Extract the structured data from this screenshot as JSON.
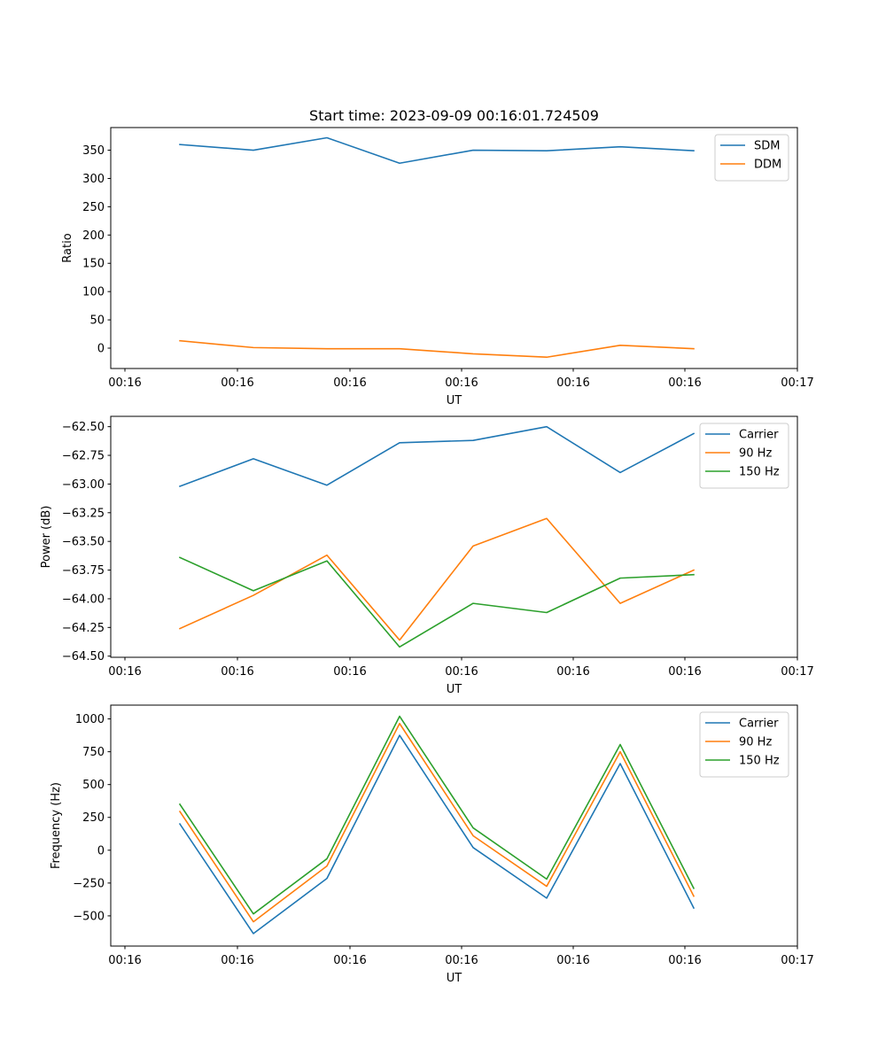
{
  "figure_title": "Start time: 2023-09-09 00:16:01.724509",
  "chart_data": [
    {
      "type": "line",
      "title": "Start time: 2023-09-09 00:16:01.724509",
      "xlabel": "UT",
      "ylabel": "Ratio",
      "x_ticks": [
        "00:16",
        "00:16",
        "00:16",
        "00:16",
        "00:16",
        "00:16",
        "00:17"
      ],
      "yticks": [
        0,
        50,
        100,
        150,
        200,
        250,
        300,
        350
      ],
      "ylim": [
        -36,
        390
      ],
      "legend_position": "top-right",
      "grid": false,
      "series": [
        {
          "name": "SDM",
          "color": "#1f77b4",
          "values": [
            360,
            350,
            372,
            327,
            350,
            349,
            356,
            349
          ]
        },
        {
          "name": "DDM",
          "color": "#ff7f0e",
          "values": [
            13,
            1,
            -1,
            -1,
            -10,
            -16,
            5,
            -1
          ]
        }
      ]
    },
    {
      "type": "line",
      "title": "",
      "xlabel": "UT",
      "ylabel": "Power (dB)",
      "x_ticks": [
        "00:16",
        "00:16",
        "00:16",
        "00:16",
        "00:16",
        "00:16",
        "00:17"
      ],
      "yticks": [
        -64.5,
        -64.25,
        -64.0,
        -63.75,
        -63.5,
        -63.25,
        -63.0,
        -62.75,
        -62.5
      ],
      "ytick_labels": [
        "−64.50",
        "−64.25",
        "−64.00",
        "−63.75",
        "−63.50",
        "−63.25",
        "−63.00",
        "−62.75",
        "−62.50"
      ],
      "ylim": [
        -64.51,
        -62.41
      ],
      "legend_position": "top-right",
      "grid": false,
      "series": [
        {
          "name": "Carrier",
          "color": "#1f77b4",
          "values": [
            -63.02,
            -62.78,
            -63.01,
            -62.64,
            -62.62,
            -62.5,
            -62.9,
            -62.56
          ]
        },
        {
          "name": "90 Hz",
          "color": "#ff7f0e",
          "values": [
            -64.26,
            -63.97,
            -63.62,
            -64.36,
            -63.54,
            -63.3,
            -64.04,
            -63.75
          ]
        },
        {
          "name": "150 Hz",
          "color": "#2ca02c",
          "values": [
            -63.64,
            -63.93,
            -63.67,
            -64.42,
            -64.04,
            -64.12,
            -63.82,
            -63.79
          ]
        }
      ]
    },
    {
      "type": "line",
      "title": "",
      "xlabel": "UT",
      "ylabel": "Frequency (Hz)",
      "x_ticks": [
        "00:16",
        "00:16",
        "00:16",
        "00:16",
        "00:16",
        "00:16",
        "00:17"
      ],
      "yticks": [
        -500,
        -250,
        0,
        250,
        500,
        750,
        1000
      ],
      "ytick_labels": [
        "−500",
        "−250",
        "0",
        "250",
        "500",
        "750",
        "1000"
      ],
      "ylim": [
        -730,
        1105
      ],
      "legend_position": "top-right",
      "grid": false,
      "series": [
        {
          "name": "Carrier",
          "color": "#1f77b4",
          "values": [
            200,
            -635,
            -215,
            875,
            20,
            -365,
            660,
            -440
          ]
        },
        {
          "name": "90 Hz",
          "color": "#ff7f0e",
          "values": [
            295,
            -545,
            -120,
            965,
            110,
            -275,
            750,
            -350
          ]
        },
        {
          "name": "150 Hz",
          "color": "#2ca02c",
          "values": [
            350,
            -485,
            -65,
            1020,
            170,
            -220,
            805,
            -290
          ]
        }
      ]
    }
  ]
}
